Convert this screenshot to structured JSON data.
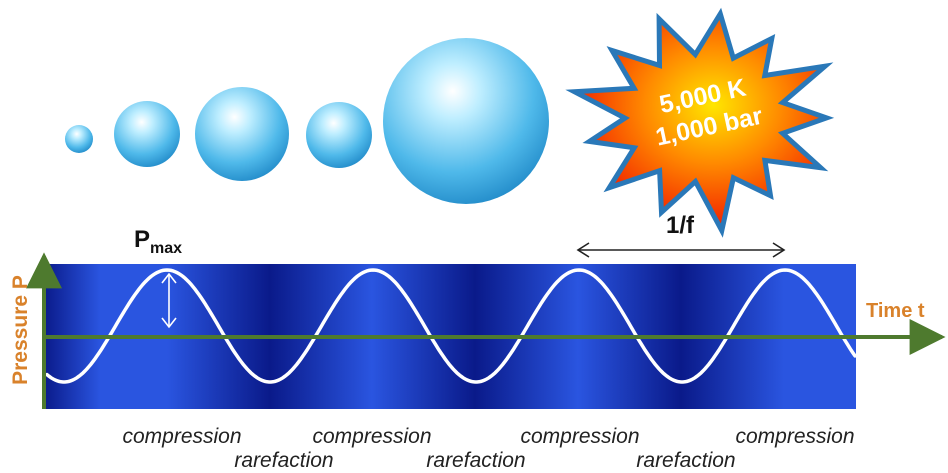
{
  "labels": {
    "pmax_symbol": "P",
    "pmax_subscript": "max",
    "period": "1/f",
    "y_axis": "Pressure P",
    "x_axis": "Time t"
  },
  "burst": {
    "line1": "5,000 K",
    "line2": "1,000 bar"
  },
  "phases": [
    {
      "text": "compression",
      "row": "upper"
    },
    {
      "text": "compression",
      "row": "upper"
    },
    {
      "text": "compression",
      "row": "upper"
    },
    {
      "text": "compression",
      "row": "upper"
    },
    {
      "text": "rarefaction",
      "row": "lower"
    },
    {
      "text": "rarefaction",
      "row": "lower"
    },
    {
      "text": "rarefaction",
      "row": "lower"
    }
  ],
  "colors": {
    "band_dark": "#0a1a8a",
    "band_light": "#2a55e0",
    "wave": "#ffffff",
    "axis": "#4e7a2e",
    "axis_label": "#d9822b",
    "bubble": "#5cc4ee",
    "burst_fill": "#ff2a00",
    "burst_core": "#ffd400",
    "burst_outline": "#2a78b8"
  }
}
